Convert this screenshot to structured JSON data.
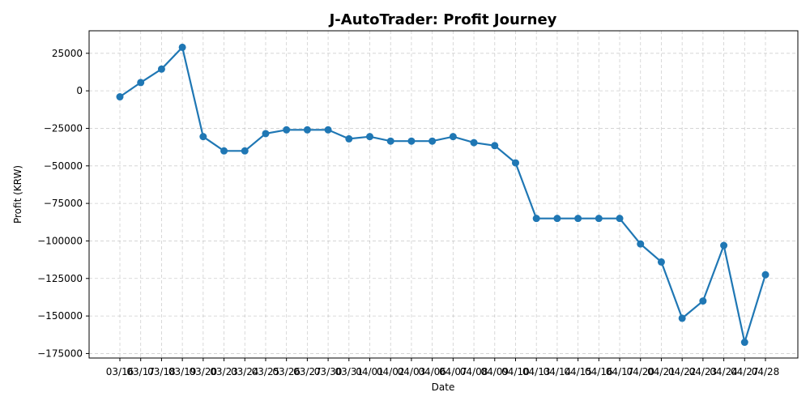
{
  "chart_data": {
    "type": "line",
    "title": "J-AutoTrader: Profit Journey",
    "xlabel": "Date",
    "ylabel": "Profit (KRW)",
    "ylim": [
      -178000,
      40000
    ],
    "yticks": [
      25000,
      0,
      -25000,
      -50000,
      -75000,
      -100000,
      -125000,
      -150000,
      -175000
    ],
    "ytick_labels": [
      "25000",
      "0",
      "−25000",
      "−50000",
      "−75000",
      "−100000",
      "−125000",
      "−150000",
      "−175000"
    ],
    "grid": true,
    "color": "#1f77b4",
    "x": [
      "03/16",
      "03/17",
      "03/18",
      "03/19",
      "03/20",
      "03/23",
      "03/24",
      "03/25",
      "03/26",
      "03/27",
      "03/30",
      "03/31",
      "04/01",
      "04/02",
      "04/03",
      "04/06",
      "04/07",
      "04/08",
      "04/09",
      "04/10",
      "04/13",
      "04/14",
      "04/15",
      "04/16",
      "04/17",
      "04/20",
      "04/21",
      "04/22",
      "04/23",
      "04/24",
      "04/27",
      "04/28"
    ],
    "values": [
      -4000,
      5500,
      14500,
      29000,
      -30500,
      -40000,
      -40000,
      -28500,
      -26000,
      -26000,
      -26000,
      -32000,
      -30500,
      -33500,
      -33500,
      -33500,
      -30500,
      -34500,
      -36500,
      -48000,
      -85000,
      -85000,
      -85000,
      -85000,
      -85000,
      -102000,
      -114000,
      -151500,
      -140000,
      -103000,
      -167500,
      -122500
    ]
  }
}
